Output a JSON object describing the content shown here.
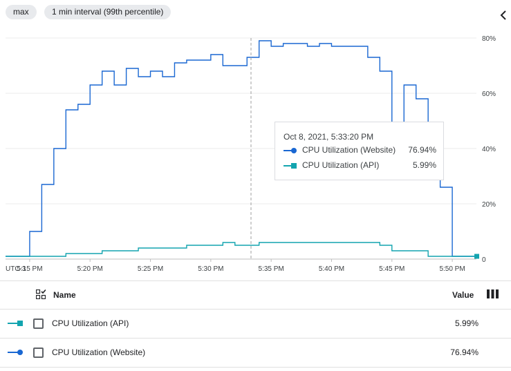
{
  "chips": {
    "aggregation": "max",
    "interval": "1 min interval (99th percentile)"
  },
  "icons": {
    "collapse": "chevron-left-icon",
    "column_picker": "column-picker-icon",
    "legend_toggle": "select-all-icon"
  },
  "chart_data": {
    "type": "line",
    "timezone_label": "UTC-3",
    "x_tick_labels": [
      "5:15 PM",
      "5:20 PM",
      "5:25 PM",
      "5:30 PM",
      "5:35 PM",
      "5:40 PM",
      "5:45 PM",
      "5:50 PM"
    ],
    "y_tick_labels": [
      "0",
      "20%",
      "40%",
      "60%",
      "80%"
    ],
    "ylim": [
      0,
      80
    ],
    "y_unit": "%",
    "x_range_min": [
      13.0,
      52.0
    ],
    "grid": true,
    "crosshair_min": 33.33,
    "series": [
      {
        "name": "CPU Utilization (Website)",
        "color": "#1967d2",
        "marker": "circle",
        "x_min": [
          13,
          14,
          15,
          16,
          17,
          18,
          19,
          20,
          21,
          22,
          23,
          24,
          25,
          26,
          27,
          28,
          29,
          30,
          31,
          32,
          33,
          34,
          35,
          36,
          37,
          38,
          39,
          40,
          41,
          42,
          43,
          44,
          45,
          46,
          47,
          48,
          49,
          50,
          51,
          52
        ],
        "values": [
          1,
          1,
          10,
          27,
          40,
          54,
          56,
          63,
          68,
          63,
          69,
          66,
          68,
          66,
          71,
          72,
          72,
          74,
          70,
          70,
          73,
          79,
          77,
          78,
          78,
          77,
          78,
          77,
          77,
          77,
          73,
          68,
          48,
          63,
          58,
          43,
          26,
          1,
          1,
          1
        ]
      },
      {
        "name": "CPU Utilization (API)",
        "color": "#12a4af",
        "marker": "square",
        "x_min": [
          13,
          14,
          15,
          16,
          17,
          18,
          19,
          20,
          21,
          22,
          23,
          24,
          25,
          26,
          27,
          28,
          29,
          30,
          31,
          32,
          33,
          34,
          35,
          36,
          37,
          38,
          39,
          40,
          41,
          42,
          43,
          44,
          45,
          46,
          47,
          48,
          49,
          50,
          51,
          52
        ],
        "values": [
          1,
          1,
          1,
          1,
          1,
          2,
          2,
          2,
          3,
          3,
          3,
          4,
          4,
          4,
          4,
          5,
          5,
          5,
          6,
          5,
          5,
          6,
          6,
          6,
          6,
          6,
          6,
          6,
          6,
          6,
          6,
          5,
          3,
          3,
          3,
          1,
          1,
          1,
          1,
          1
        ]
      }
    ]
  },
  "tooltip": {
    "time": "Oct 8, 2021, 5:33:20 PM",
    "rows": [
      {
        "name": "CPU Utilization (Website)",
        "value": "76.94%"
      },
      {
        "name": "CPU Utilization (API)",
        "value": "5.99%"
      }
    ]
  },
  "legend_table": {
    "headers": {
      "name": "Name",
      "value": "Value"
    },
    "rows": [
      {
        "name": "CPU Utilization (API)",
        "value": "5.99%"
      },
      {
        "name": "CPU Utilization (Website)",
        "value": "76.94%"
      }
    ]
  }
}
